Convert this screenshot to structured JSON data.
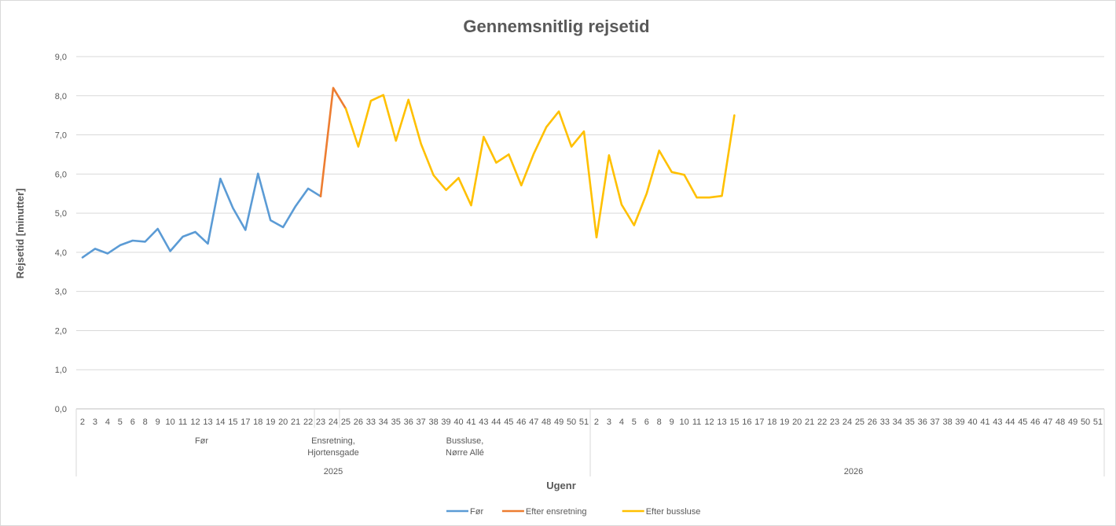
{
  "chart_data": {
    "type": "line",
    "title": "Gennemsnitlig rejsetid",
    "xlabel": "Ugenr",
    "ylabel": "Rejsetid [minutter]",
    "ylim": [
      0,
      9
    ],
    "yticks": [
      "0,0",
      "1,0",
      "2,0",
      "3,0",
      "4,0",
      "5,0",
      "6,0",
      "7,0",
      "8,0",
      "9,0"
    ],
    "grid": true,
    "legend_position": "bottom",
    "categories": [
      "2",
      "3",
      "4",
      "5",
      "6",
      "8",
      "9",
      "10",
      "11",
      "12",
      "13",
      "14",
      "15",
      "17",
      "18",
      "19",
      "20",
      "21",
      "22",
      "23",
      "24",
      "25",
      "26",
      "33",
      "34",
      "35",
      "36",
      "37",
      "38",
      "39",
      "40",
      "41",
      "43",
      "44",
      "45",
      "46",
      "47",
      "48",
      "49",
      "50",
      "51",
      "2",
      "3",
      "4",
      "5",
      "6",
      "8",
      "9",
      "10",
      "11",
      "12",
      "13",
      "15",
      "16",
      "17",
      "18",
      "19",
      "20",
      "21",
      "22",
      "23",
      "24",
      "25",
      "26",
      "33",
      "34",
      "35",
      "36",
      "37",
      "38",
      "39",
      "40",
      "41",
      "43",
      "44",
      "45",
      "46",
      "47",
      "48",
      "49",
      "50",
      "51"
    ],
    "groups": [
      {
        "label": "Før",
        "start": 0,
        "end": 19
      },
      {
        "label": "Ensretning,\nHjortensgade",
        "start": 19,
        "end": 21
      },
      {
        "label": "Bussluse,\nNørre Allé",
        "start": 21,
        "end": 40
      }
    ],
    "years": [
      {
        "label": "2025",
        "start": 0,
        "end": 40
      },
      {
        "label": "2026",
        "start": 41,
        "end": 82
      }
    ],
    "series": [
      {
        "name": "Før",
        "color": "#5b9bd5",
        "points": [
          [
            0,
            3.87
          ],
          [
            1,
            4.09
          ],
          [
            2,
            3.97
          ],
          [
            3,
            4.18
          ],
          [
            4,
            4.3
          ],
          [
            5,
            4.27
          ],
          [
            6,
            4.6
          ],
          [
            7,
            4.03
          ],
          [
            8,
            4.4
          ],
          [
            9,
            4.52
          ],
          [
            10,
            4.22
          ],
          [
            11,
            5.88
          ],
          [
            12,
            5.13
          ],
          [
            13,
            4.57
          ],
          [
            14,
            6.01
          ],
          [
            15,
            4.82
          ],
          [
            16,
            4.64
          ],
          [
            17,
            5.18
          ],
          [
            18,
            5.63
          ],
          [
            19,
            5.43
          ]
        ]
      },
      {
        "name": "Efter ensretning",
        "color": "#ed7d31",
        "points": [
          [
            19,
            5.43
          ],
          [
            20,
            8.2
          ],
          [
            21,
            7.67
          ]
        ]
      },
      {
        "name": "Efter bussluse",
        "color": "#ffc000",
        "points": [
          [
            21,
            7.67
          ],
          [
            22,
            6.7
          ],
          [
            23,
            7.87
          ],
          [
            24,
            8.02
          ],
          [
            25,
            6.85
          ],
          [
            26,
            7.9
          ],
          [
            27,
            6.77
          ],
          [
            28,
            5.97
          ],
          [
            29,
            5.59
          ],
          [
            30,
            5.9
          ],
          [
            31,
            5.2
          ],
          [
            32,
            6.95
          ],
          [
            33,
            6.29
          ],
          [
            34,
            6.5
          ],
          [
            35,
            5.71
          ],
          [
            36,
            6.52
          ],
          [
            37,
            7.2
          ],
          [
            38,
            7.6
          ],
          [
            39,
            6.7
          ],
          [
            40,
            7.09
          ],
          [
            41,
            4.38
          ],
          [
            42,
            6.48
          ],
          [
            43,
            5.22
          ],
          [
            44,
            4.69
          ],
          [
            45,
            5.5
          ],
          [
            46,
            6.6
          ],
          [
            47,
            6.05
          ],
          [
            48,
            5.98
          ],
          [
            49,
            5.4
          ],
          [
            50,
            5.4
          ],
          [
            51,
            5.44
          ],
          [
            52,
            7.5
          ]
        ]
      }
    ]
  }
}
